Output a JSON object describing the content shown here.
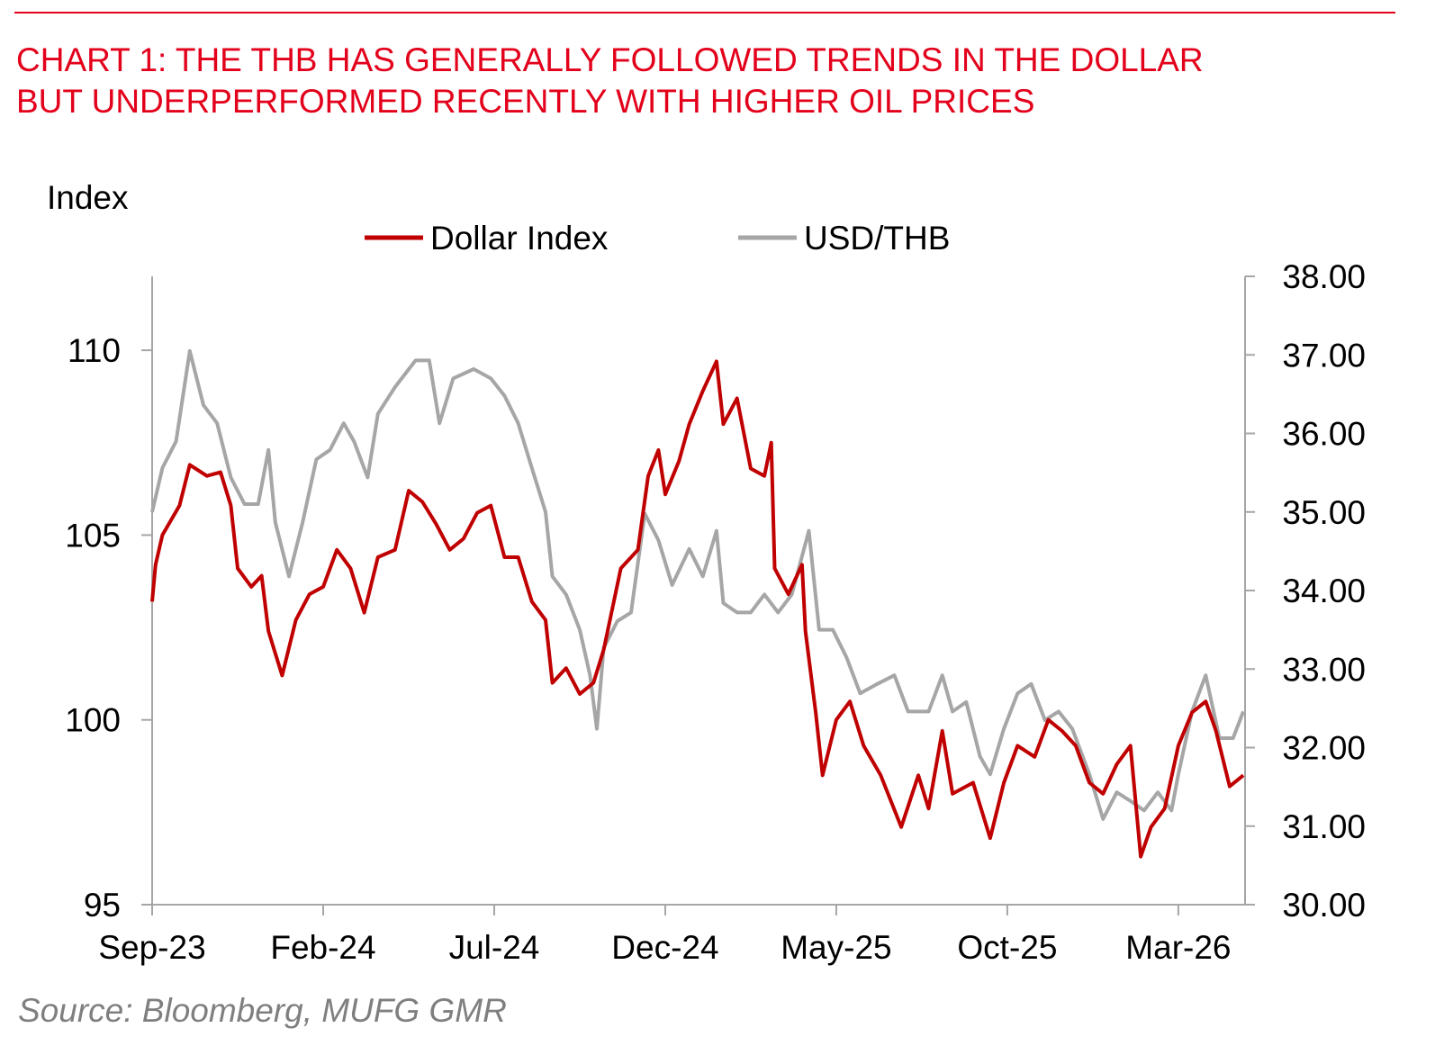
{
  "chart_data": {
    "type": "line",
    "title_lines": [
      "CHART 1: THE THB HAS GENERALLY FOLLOWED TRENDS IN THE DOLLAR",
      "BUT UNDERPERFORMED RECENTLY WITH HIGHER OIL PRICES"
    ],
    "ylabel_left": "Index",
    "source": "Source: Bloomberg, MUFG GMR",
    "x_unit": "months since Sep-2023",
    "xlim": [
      0,
      31.95
    ],
    "x_ticks": [
      {
        "m": 0,
        "label": "Sep-23"
      },
      {
        "m": 5,
        "label": "Feb-24"
      },
      {
        "m": 10,
        "label": "Jul-24"
      },
      {
        "m": 15,
        "label": "Dec-24"
      },
      {
        "m": 20,
        "label": "May-25"
      },
      {
        "m": 25,
        "label": "Oct-25"
      },
      {
        "m": 30,
        "label": "Mar-26"
      }
    ],
    "ylim_left": [
      95,
      112
    ],
    "y_ticks_left": [
      "95",
      "100",
      "105",
      "110"
    ],
    "ylim_right": [
      30,
      38
    ],
    "y_ticks_right": [
      "30.00",
      "31.00",
      "32.00",
      "33.00",
      "34.00",
      "35.00",
      "36.00",
      "37.00",
      "38.00"
    ],
    "legend_position": "top-center",
    "colors": {
      "dollar": "#c00000",
      "thb": "#a6a6a6",
      "title": "#e3001b",
      "rule": "#e3001b"
    },
    "series": [
      {
        "name": "Dollar Index",
        "axis": "left",
        "color": "#c00000",
        "points": [
          [
            0,
            103.2
          ],
          [
            0.1,
            104.2
          ],
          [
            0.3,
            105.0
          ],
          [
            0.8,
            105.8
          ],
          [
            1.1,
            106.9
          ],
          [
            1.6,
            106.6
          ],
          [
            2.0,
            106.7
          ],
          [
            2.3,
            105.8
          ],
          [
            2.5,
            104.1
          ],
          [
            2.9,
            103.6
          ],
          [
            3.2,
            103.9
          ],
          [
            3.4,
            102.4
          ],
          [
            3.8,
            101.2
          ],
          [
            4.2,
            102.7
          ],
          [
            4.6,
            103.4
          ],
          [
            5.0,
            103.6
          ],
          [
            5.4,
            104.6
          ],
          [
            5.8,
            104.1
          ],
          [
            6.2,
            102.9
          ],
          [
            6.6,
            104.4
          ],
          [
            7.1,
            104.6
          ],
          [
            7.5,
            106.2
          ],
          [
            7.9,
            105.9
          ],
          [
            8.3,
            105.3
          ],
          [
            8.7,
            104.6
          ],
          [
            9.1,
            104.9
          ],
          [
            9.5,
            105.6
          ],
          [
            9.9,
            105.8
          ],
          [
            10.3,
            104.4
          ],
          [
            10.7,
            104.4
          ],
          [
            11.1,
            103.2
          ],
          [
            11.5,
            102.7
          ],
          [
            11.7,
            101.0
          ],
          [
            12.1,
            101.4
          ],
          [
            12.5,
            100.7
          ],
          [
            12.9,
            101.0
          ],
          [
            13.2,
            101.9
          ],
          [
            13.7,
            104.1
          ],
          [
            14.2,
            104.6
          ],
          [
            14.5,
            106.6
          ],
          [
            14.8,
            107.3
          ],
          [
            15.0,
            106.1
          ],
          [
            15.4,
            107.0
          ],
          [
            15.7,
            108.0
          ],
          [
            16.1,
            108.9
          ],
          [
            16.5,
            109.7
          ],
          [
            16.7,
            108.0
          ],
          [
            17.1,
            108.7
          ],
          [
            17.5,
            106.8
          ],
          [
            17.9,
            106.6
          ],
          [
            18.1,
            107.5
          ],
          [
            18.2,
            104.1
          ],
          [
            18.6,
            103.4
          ],
          [
            19.0,
            104.2
          ],
          [
            19.1,
            102.4
          ],
          [
            19.4,
            100.2
          ],
          [
            19.6,
            98.5
          ],
          [
            20.0,
            100.0
          ],
          [
            20.4,
            100.5
          ],
          [
            20.8,
            99.3
          ],
          [
            21.3,
            98.5
          ],
          [
            21.9,
            97.1
          ],
          [
            22.4,
            98.5
          ],
          [
            22.7,
            97.6
          ],
          [
            23.1,
            99.7
          ],
          [
            23.4,
            98.0
          ],
          [
            24.0,
            98.3
          ],
          [
            24.5,
            96.8
          ],
          [
            24.9,
            98.3
          ],
          [
            25.3,
            99.3
          ],
          [
            25.8,
            99.0
          ],
          [
            26.2,
            100.0
          ],
          [
            26.6,
            99.7
          ],
          [
            27.0,
            99.3
          ],
          [
            27.4,
            98.3
          ],
          [
            27.8,
            98.0
          ],
          [
            28.2,
            98.8
          ],
          [
            28.6,
            99.3
          ],
          [
            28.9,
            96.3
          ],
          [
            29.2,
            97.1
          ],
          [
            29.6,
            97.6
          ],
          [
            30.0,
            99.3
          ],
          [
            30.4,
            100.2
          ],
          [
            30.8,
            100.5
          ],
          [
            31.1,
            99.7
          ],
          [
            31.5,
            98.2
          ],
          [
            31.9,
            98.5
          ]
        ]
      },
      {
        "name": "USD/THB",
        "axis": "right",
        "color": "#a6a6a6",
        "points": [
          [
            0,
            35.0
          ],
          [
            0.3,
            35.56
          ],
          [
            0.7,
            35.9
          ],
          [
            1.1,
            37.05
          ],
          [
            1.5,
            36.36
          ],
          [
            1.9,
            36.13
          ],
          [
            2.3,
            35.44
          ],
          [
            2.7,
            35.1
          ],
          [
            3.1,
            35.1
          ],
          [
            3.4,
            35.79
          ],
          [
            3.6,
            34.87
          ],
          [
            4.0,
            34.18
          ],
          [
            4.4,
            34.87
          ],
          [
            4.8,
            35.67
          ],
          [
            5.2,
            35.79
          ],
          [
            5.6,
            36.13
          ],
          [
            5.9,
            35.9
          ],
          [
            6.3,
            35.44
          ],
          [
            6.6,
            36.25
          ],
          [
            7.1,
            36.59
          ],
          [
            7.7,
            36.93
          ],
          [
            8.1,
            36.93
          ],
          [
            8.4,
            36.13
          ],
          [
            8.8,
            36.7
          ],
          [
            9.4,
            36.82
          ],
          [
            9.9,
            36.7
          ],
          [
            10.3,
            36.48
          ],
          [
            10.7,
            36.13
          ],
          [
            11.1,
            35.56
          ],
          [
            11.5,
            35.0
          ],
          [
            11.7,
            34.18
          ],
          [
            12.1,
            33.95
          ],
          [
            12.5,
            33.5
          ],
          [
            12.8,
            32.92
          ],
          [
            13.0,
            32.24
          ],
          [
            13.2,
            33.27
          ],
          [
            13.6,
            33.61
          ],
          [
            14.0,
            33.72
          ],
          [
            14.4,
            34.98
          ],
          [
            14.8,
            34.64
          ],
          [
            15.2,
            34.07
          ],
          [
            15.7,
            34.53
          ],
          [
            16.1,
            34.18
          ],
          [
            16.5,
            34.76
          ],
          [
            16.7,
            33.84
          ],
          [
            17.1,
            33.72
          ],
          [
            17.5,
            33.72
          ],
          [
            17.9,
            33.95
          ],
          [
            18.3,
            33.72
          ],
          [
            18.7,
            33.95
          ],
          [
            19.2,
            34.76
          ],
          [
            19.5,
            33.5
          ],
          [
            19.9,
            33.5
          ],
          [
            20.3,
            33.15
          ],
          [
            20.7,
            32.69
          ],
          [
            21.2,
            32.81
          ],
          [
            21.7,
            32.92
          ],
          [
            22.1,
            32.46
          ],
          [
            22.7,
            32.46
          ],
          [
            23.1,
            32.92
          ],
          [
            23.4,
            32.46
          ],
          [
            23.8,
            32.58
          ],
          [
            24.2,
            31.89
          ],
          [
            24.5,
            31.66
          ],
          [
            24.9,
            32.24
          ],
          [
            25.3,
            32.69
          ],
          [
            25.7,
            32.81
          ],
          [
            26.1,
            32.35
          ],
          [
            26.5,
            32.46
          ],
          [
            26.9,
            32.24
          ],
          [
            27.4,
            31.66
          ],
          [
            27.8,
            31.09
          ],
          [
            28.2,
            31.43
          ],
          [
            28.6,
            31.32
          ],
          [
            29.0,
            31.2
          ],
          [
            29.4,
            31.43
          ],
          [
            29.8,
            31.2
          ],
          [
            30.0,
            31.66
          ],
          [
            30.4,
            32.46
          ],
          [
            30.8,
            32.92
          ],
          [
            31.2,
            32.12
          ],
          [
            31.6,
            32.12
          ],
          [
            31.9,
            32.46
          ]
        ]
      }
    ]
  }
}
